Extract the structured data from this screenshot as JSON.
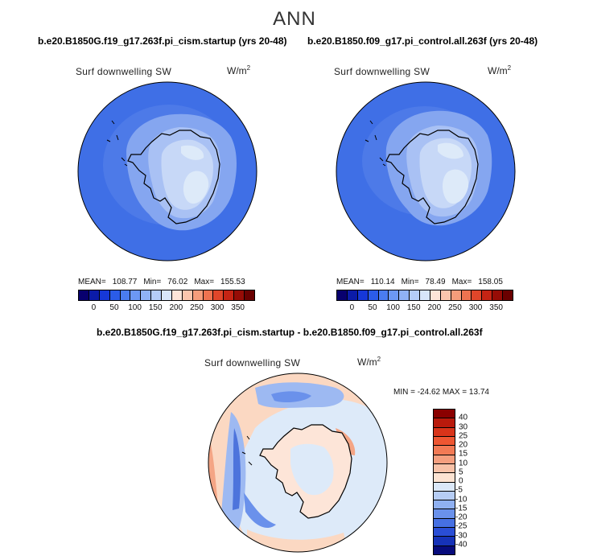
{
  "title": "ANN",
  "panels": {
    "left": {
      "case": "b.e20.B1850G.f19_g17.263f.pi_cism.startup (yrs 20-48)",
      "variable": "Surf downwelling SW",
      "units_base": "W/m",
      "units_exp": "2",
      "mean_label": "MEAN=",
      "mean": "108.77",
      "min_label": "Min=",
      "min": "76.02",
      "max_label": "Max=",
      "max": "155.53"
    },
    "right": {
      "case": "b.e20.B1850.f09_g17.pi_control.all.263f (yrs 20-48)",
      "variable": "Surf downwelling SW",
      "units_base": "W/m",
      "units_exp": "2",
      "mean_label": "MEAN=",
      "mean": "110.14",
      "min_label": "Min=",
      "min": "78.49",
      "max_label": "Max=",
      "max": "158.05"
    },
    "diff": {
      "case": "b.e20.B1850G.f19_g17.263f.pi_cism.startup - b.e20.B1850.f09_g17.pi_control.all.263f",
      "variable": "Surf downwelling SW",
      "units_base": "W/m",
      "units_exp": "2",
      "minmax": "MIN = -24.62 MAX =  13.74"
    }
  },
  "colorbar_abs": {
    "ticks": [
      "0",
      "50",
      "100",
      "150",
      "200",
      "250",
      "300",
      "350"
    ],
    "colors": [
      "#08006e",
      "#0b1ba8",
      "#1638d8",
      "#2b5ce8",
      "#4a7cf0",
      "#6c98f4",
      "#8fb2f6",
      "#b4ccf8",
      "#d8e6fa",
      "#fde5d8",
      "#fbc6ad",
      "#f59d7b",
      "#ee7350",
      "#e0462a",
      "#c52414",
      "#960c06",
      "#6a0000"
    ]
  },
  "colorbar_diff": {
    "labels": [
      "40",
      "30",
      "25",
      "20",
      "15",
      "10",
      "5",
      "0",
      "-5",
      "-10",
      "-15",
      "-20",
      "-25",
      "-30",
      "-40"
    ],
    "colors": [
      "#8a0000",
      "#b91a0c",
      "#d8341a",
      "#ee5632",
      "#f27a55",
      "#f59f7f",
      "#f8c2a8",
      "#fce3d2",
      "#dbe8f8",
      "#b6cdf5",
      "#8fb0f1",
      "#6a91eb",
      "#4670e3",
      "#2a4ed6",
      "#1632b8",
      "#070b7c"
    ]
  },
  "palette": {
    "ocean": "#3f6fe6",
    "ocean_ring": "#5a85ec",
    "coast_band": "#85a6f0",
    "ice_shelf": "#a9c1f4",
    "plateau": "#c7d8f7",
    "interior": "#ddeaf9",
    "diff_pos": "#fbd8c2",
    "diff_pos_strong": "#f4a585",
    "diff_neg": "#9db9f2",
    "diff_neg_strong": "#4d74dc"
  }
}
